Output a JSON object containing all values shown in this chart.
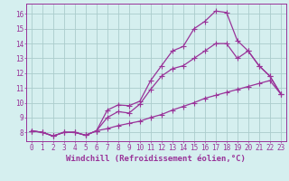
{
  "line1_x": [
    0,
    1,
    2,
    3,
    4,
    5,
    6,
    7,
    8,
    9,
    10,
    11,
    12,
    13,
    14,
    15,
    16,
    17,
    18,
    19,
    20,
    21,
    22,
    23
  ],
  "line1_y": [
    8.1,
    8.0,
    7.75,
    8.0,
    8.0,
    7.8,
    8.1,
    9.5,
    9.85,
    9.8,
    10.1,
    11.5,
    12.5,
    13.5,
    13.8,
    15.0,
    15.5,
    16.2,
    16.1,
    14.2,
    13.5,
    12.5,
    11.8,
    10.6
  ],
  "line2_x": [
    0,
    1,
    2,
    3,
    4,
    5,
    6,
    7,
    8,
    9,
    10,
    11,
    12,
    13,
    14,
    15,
    16,
    17,
    18,
    19,
    20,
    21,
    22,
    23
  ],
  "line2_y": [
    8.1,
    8.0,
    7.75,
    8.0,
    8.0,
    7.8,
    8.1,
    9.0,
    9.4,
    9.3,
    9.9,
    10.9,
    11.8,
    12.3,
    12.5,
    13.0,
    13.5,
    14.0,
    14.0,
    13.0,
    13.5,
    12.5,
    11.8,
    10.6
  ],
  "line3_x": [
    0,
    1,
    2,
    3,
    4,
    5,
    6,
    7,
    8,
    9,
    10,
    11,
    12,
    13,
    14,
    15,
    16,
    17,
    18,
    19,
    20,
    21,
    22,
    23
  ],
  "line3_y": [
    8.1,
    8.0,
    7.75,
    8.0,
    8.0,
    7.8,
    8.1,
    8.25,
    8.45,
    8.6,
    8.75,
    9.0,
    9.2,
    9.5,
    9.75,
    10.0,
    10.3,
    10.5,
    10.7,
    10.9,
    11.1,
    11.3,
    11.5,
    10.6
  ],
  "line_color": "#993399",
  "bg_color": "#D5EFEF",
  "grid_color": "#AACCCC",
  "xlabel": "Windchill (Refroidissement éolien,°C)",
  "xlim_min": -0.5,
  "xlim_max": 23.5,
  "ylim_min": 7.4,
  "ylim_max": 16.7,
  "xticks": [
    0,
    1,
    2,
    3,
    4,
    5,
    6,
    7,
    8,
    9,
    10,
    11,
    12,
    13,
    14,
    15,
    16,
    17,
    18,
    19,
    20,
    21,
    22,
    23
  ],
  "yticks": [
    8,
    9,
    10,
    11,
    12,
    13,
    14,
    15,
    16
  ],
  "xlabel_fontsize": 6.5,
  "tick_fontsize": 5.5,
  "markersize": 2.5,
  "linewidth": 0.9
}
